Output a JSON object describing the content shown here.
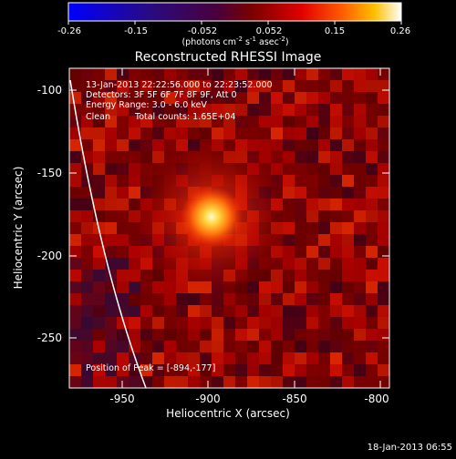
{
  "colorbar": {
    "ticks": [
      "-0.26",
      "-0.15",
      "-0.052",
      "0.052",
      "0.15",
      "0.26"
    ],
    "units_main": "(photons cm",
    "units_exp1": "-2",
    "units_mid": " s",
    "units_exp2": "-1",
    "units_tail": " asec",
    "units_exp3": "-2",
    "units_close": ")"
  },
  "plot": {
    "title": "Reconstructed RHESSI Image",
    "time_range": "13-Jan-2013 22:22:56.000 to 22:23:52.000",
    "detectors": "Detectors: 3F 5F 6F 7F 8F 9F, Att 0",
    "energy": "Energy Range: 3.0 - 6.0 keV",
    "method": "Clean",
    "counts": "Total counts: 1.65E+04",
    "peak": "Position of Peak = [-894,-177]",
    "xlabel": "Heliocentric X (arcsec)",
    "ylabel": "Heliocentric Y (arcsec)",
    "xticks": [
      "-950",
      "-900",
      "-850",
      "-800"
    ],
    "yticks": [
      "-100",
      "-150",
      "-200",
      "-250"
    ],
    "x_range": [
      -978,
      -792
    ],
    "y_range": [
      -280,
      -87
    ],
    "colormap": "rhessi-thermal",
    "peak_x": -894,
    "peak_y": -177
  },
  "footer": {
    "date": "18-Jan-2013 06:55"
  }
}
